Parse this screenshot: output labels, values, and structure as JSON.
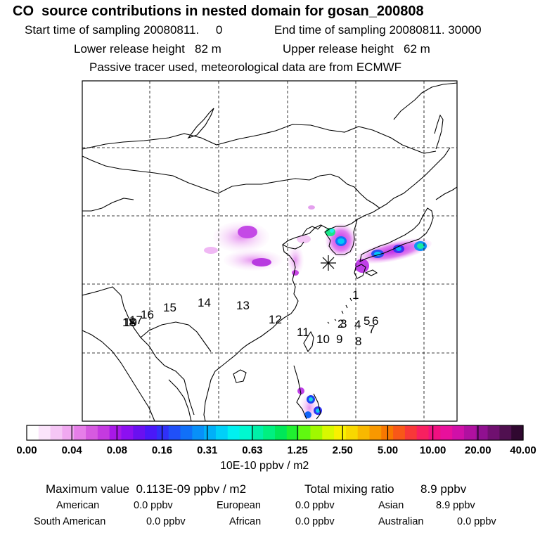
{
  "header": {
    "title": "CO  source contributions in nested domain for gosan_200808",
    "start_time": "Start time of sampling 20080811.     0",
    "end_time": "End time of sampling 20080811. 30000",
    "lower_height": "Lower release height   82 m",
    "upper_height": "Upper release height   62 m",
    "tracer_note": "Passive tracer used, meteorological data are from ECMWF"
  },
  "map": {
    "station_marker": "receptor-star",
    "trajectory_labels": [
      "1",
      "2",
      "3",
      "4",
      "5",
      "6",
      "7",
      "8",
      "9",
      "10",
      "11",
      "12",
      "13",
      "14",
      "15",
      "16",
      "17",
      "18",
      "19"
    ]
  },
  "colorbar": {
    "ticks": [
      "0.00",
      "0.04",
      "0.08",
      "0.16",
      "0.31",
      "0.63",
      "1.25",
      "2.50",
      "5.00",
      "10.00",
      "20.00",
      "40.00"
    ],
    "unit": "10E-10 ppbv / m2",
    "colors": [
      "#ffffff",
      "#fbe4fb",
      "#f5c6f5",
      "#f0a8f0",
      "#e67ee8",
      "#d65ae0",
      "#c43ae0",
      "#a818e8",
      "#8c10f0",
      "#6a10f0",
      "#4a18f8",
      "#3030f8",
      "#2050f8",
      "#1070f8",
      "#0890f8",
      "#00b0f8",
      "#00d0f8",
      "#00f0f0",
      "#00f8d0",
      "#00f0a8",
      "#00f080",
      "#00e858",
      "#20f030",
      "#60f810",
      "#a0f800",
      "#d8f800",
      "#f8f000",
      "#f8d800",
      "#f8b800",
      "#f89800",
      "#f87800",
      "#f85818",
      "#f83838",
      "#f82060",
      "#f01080",
      "#e8109c",
      "#d010a8",
      "#b010a0",
      "#901090",
      "#701070",
      "#501050",
      "#300830"
    ]
  },
  "summary": {
    "max_value": "Maximum value  0.113E-09 ppbv / m2",
    "total_mixing_label": "Total mixing ratio",
    "total_mixing_value": "8.9 ppbv",
    "american_label": "American",
    "american_value": "0.0 ppbv",
    "european_label": "European",
    "european_value": "0.0 ppbv",
    "asian_label": "Asian",
    "asian_value": "8.9 ppbv",
    "south_american_label": "South American",
    "south_american_value": "0.0 ppbv",
    "african_label": "African",
    "african_value": "0.0 ppbv",
    "australian_label": "Australian",
    "australian_value": "0.0 ppbv"
  }
}
